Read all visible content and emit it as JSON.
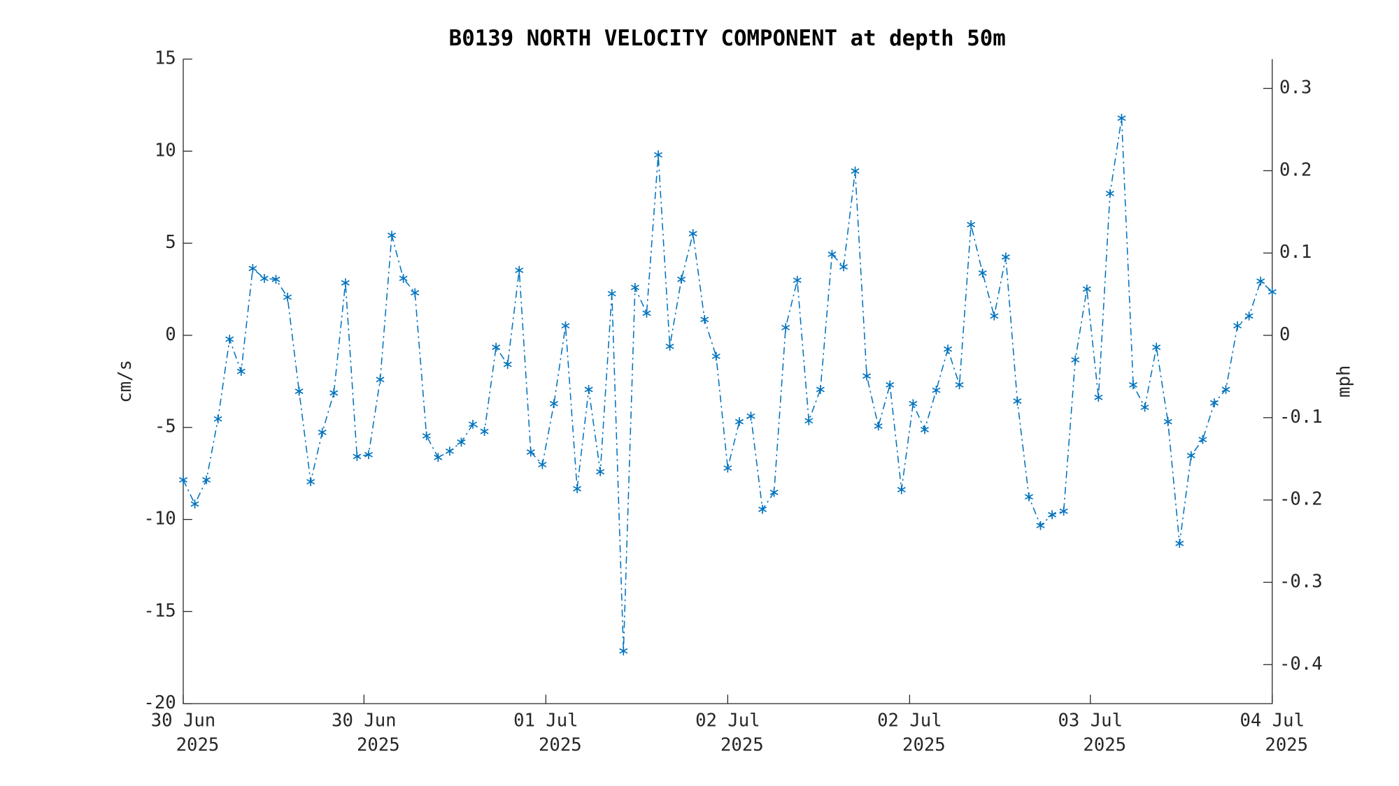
{
  "chart_data": {
    "type": "line",
    "title": "B0139 NORTH VELOCITY COMPONENT at depth 50m",
    "ylabel": "cm/s",
    "y2label": "mph",
    "xlim": [
      0,
      94
    ],
    "xticks": [
      {
        "value": 0,
        "label": "30 Jun 2025"
      },
      {
        "value": 15.6,
        "label": "30 Jun 2025"
      },
      {
        "value": 31.3,
        "label": "01 Jul 2025"
      },
      {
        "value": 47,
        "label": "02 Jul 2025"
      },
      {
        "value": 62.7,
        "label": "02 Jul 2025"
      },
      {
        "value": 78.3,
        "label": "03 Jul 2025"
      },
      {
        "value": 94,
        "label": "04 Jul 2025"
      }
    ],
    "ylim": [
      -20,
      15
    ],
    "yticks": [
      -20,
      -15,
      -10,
      -5,
      0,
      5,
      10,
      15
    ],
    "y2lim": [
      -0.4474,
      0.3356
    ],
    "y2ticks": [
      -0.4,
      -0.3,
      -0.2,
      -0.1,
      0,
      0.1,
      0.2,
      0.3
    ],
    "series": [
      {
        "color": "#0072bd",
        "values": [
          -7.85,
          -9.16,
          -7.85,
          -4.54,
          -0.21,
          -1.96,
          3.63,
          3.09,
          3.04,
          2.07,
          -3.04,
          -7.95,
          -5.27,
          -3.13,
          2.85,
          -6.58,
          -6.48,
          -2.4,
          5.43,
          3.09,
          2.31,
          -5.46,
          -6.63,
          -6.29,
          -5.8,
          -4.83,
          -5.22,
          -0.65,
          -1.58,
          3.53,
          -6.34,
          -7.02,
          -3.71,
          0.52,
          -8.33,
          -2.94,
          -7.41,
          2.26,
          -17.14,
          2.6,
          1.2,
          9.8,
          -0.6,
          3.04,
          5.52,
          0.86,
          -1.14,
          -7.21,
          -4.69,
          -4.39,
          -9.45,
          -8.53,
          0.42,
          2.99,
          -4.64,
          -2.94,
          4.4,
          3.72,
          8.92,
          -2.21,
          -4.93,
          -2.69,
          -8.38,
          -3.71,
          -5.12,
          -2.98,
          -0.75,
          -2.69,
          6.01,
          3.38,
          1.05,
          4.25,
          -3.57,
          -8.77,
          -10.33,
          -9.74,
          -9.55,
          -1.33,
          2.51,
          -3.37,
          7.7,
          11.79,
          -2.69,
          -3.91,
          -0.65,
          -4.69,
          -11.3,
          -6.53,
          -5.66,
          -3.67,
          -2.94,
          0.52,
          1.05,
          2.94,
          2.36
        ]
      }
    ]
  }
}
